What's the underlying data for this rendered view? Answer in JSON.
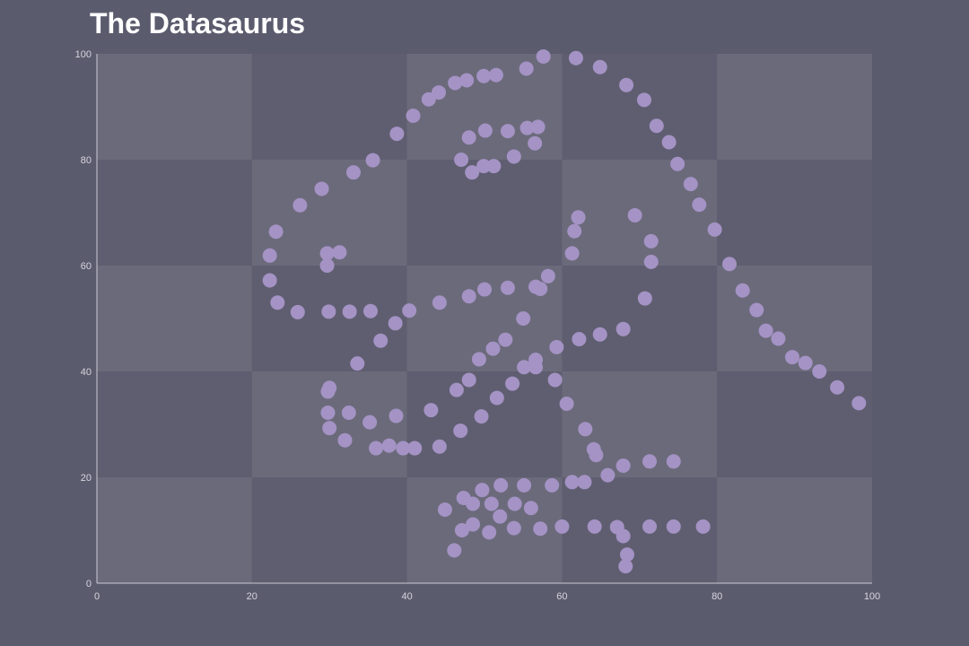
{
  "title": "The Datasaurus",
  "chart_data": {
    "type": "scatter",
    "title": "The Datasaurus",
    "xlabel": "",
    "ylabel": "",
    "xlim": [
      0,
      100
    ],
    "ylim": [
      0,
      100
    ],
    "xticks": [
      "0",
      "20",
      "40",
      "60",
      "80",
      "100"
    ],
    "yticks": [
      "0",
      "20",
      "40",
      "60",
      "80",
      "100"
    ],
    "grid": "checkerboard",
    "legend": "none",
    "colors": {
      "background": "#5b5b6e",
      "plot_light": "#6b6a7b",
      "plot_dark": "#5f5e71",
      "point": "#a493c4",
      "axis": "#c9c9d4",
      "tick_label": "#d6d6df",
      "title": "#ffffff"
    },
    "points": [
      [
        55.4,
        97.2
      ],
      [
        51.5,
        96.0
      ],
      [
        46.2,
        94.5
      ],
      [
        42.8,
        91.4
      ],
      [
        40.8,
        88.3
      ],
      [
        38.7,
        84.9
      ],
      [
        35.6,
        79.9
      ],
      [
        33.1,
        77.6
      ],
      [
        29.0,
        74.5
      ],
      [
        26.2,
        71.4
      ],
      [
        23.1,
        66.4
      ],
      [
        22.3,
        61.9
      ],
      [
        22.3,
        57.2
      ],
      [
        23.3,
        53.0
      ],
      [
        25.9,
        51.2
      ],
      [
        29.9,
        51.3
      ],
      [
        32.6,
        51.3
      ],
      [
        35.3,
        51.4
      ],
      [
        38.5,
        49.1
      ],
      [
        40.3,
        51.5
      ],
      [
        44.2,
        53.0
      ],
      [
        48.0,
        54.2
      ],
      [
        50.0,
        55.5
      ],
      [
        53.0,
        55.8
      ],
      [
        56.6,
        56.0
      ],
      [
        58.2,
        58.0
      ],
      [
        57.6,
        99.5
      ],
      [
        61.8,
        99.2
      ],
      [
        64.9,
        97.5
      ],
      [
        68.3,
        94.1
      ],
      [
        70.6,
        91.3
      ],
      [
        72.2,
        86.4
      ],
      [
        73.8,
        83.3
      ],
      [
        74.9,
        79.2
      ],
      [
        76.6,
        75.4
      ],
      [
        77.7,
        71.5
      ],
      [
        79.7,
        66.8
      ],
      [
        81.6,
        60.3
      ],
      [
        83.3,
        55.3
      ],
      [
        85.1,
        51.6
      ],
      [
        86.3,
        47.7
      ],
      [
        87.9,
        46.2
      ],
      [
        89.7,
        42.7
      ],
      [
        91.4,
        41.6
      ],
      [
        93.2,
        40.0
      ],
      [
        95.5,
        37.0
      ],
      [
        98.3,
        34.0
      ],
      [
        47.7,
        95.0
      ],
      [
        49.9,
        95.8
      ],
      [
        44.1,
        92.7
      ],
      [
        48.0,
        84.2
      ],
      [
        50.1,
        85.5
      ],
      [
        53.0,
        85.4
      ],
      [
        55.5,
        86.0
      ],
      [
        56.9,
        86.2
      ],
      [
        56.5,
        83.1
      ],
      [
        53.8,
        80.6
      ],
      [
        51.2,
        78.8
      ],
      [
        49.9,
        78.8
      ],
      [
        48.4,
        77.6
      ],
      [
        47.0,
        80.0
      ],
      [
        29.7,
        62.3
      ],
      [
        31.3,
        62.5
      ],
      [
        29.7,
        60.0
      ],
      [
        62.1,
        69.1
      ],
      [
        61.6,
        66.5
      ],
      [
        61.3,
        62.3
      ],
      [
        69.4,
        69.5
      ],
      [
        71.5,
        64.6
      ],
      [
        71.5,
        60.7
      ],
      [
        70.7,
        53.8
      ],
      [
        57.2,
        55.6
      ],
      [
        55.0,
        50.0
      ],
      [
        52.7,
        46.0
      ],
      [
        51.1,
        44.3
      ],
      [
        49.3,
        42.3
      ],
      [
        46.4,
        36.5
      ],
      [
        43.1,
        32.7
      ],
      [
        38.6,
        31.6
      ],
      [
        35.2,
        30.4
      ],
      [
        32.5,
        32.2
      ],
      [
        29.8,
        32.2
      ],
      [
        30.0,
        29.3
      ],
      [
        32.0,
        27.0
      ],
      [
        36.0,
        25.5
      ],
      [
        37.7,
        26.0
      ],
      [
        39.5,
        25.5
      ],
      [
        41.0,
        25.5
      ],
      [
        44.2,
        25.8
      ],
      [
        46.9,
        28.8
      ],
      [
        49.6,
        31.5
      ],
      [
        51.6,
        35.0
      ],
      [
        53.6,
        37.7
      ],
      [
        55.1,
        40.8
      ],
      [
        56.6,
        42.2
      ],
      [
        56.6,
        40.8
      ],
      [
        59.3,
        44.6
      ],
      [
        62.2,
        46.1
      ],
      [
        64.9,
        47.0
      ],
      [
        67.9,
        48.0
      ],
      [
        33.6,
        41.5
      ],
      [
        36.6,
        45.8
      ],
      [
        30.0,
        36.9
      ],
      [
        29.8,
        36.2
      ],
      [
        48.0,
        38.4
      ],
      [
        59.1,
        38.4
      ],
      [
        60.6,
        33.9
      ],
      [
        63.0,
        29.1
      ],
      [
        64.1,
        25.3
      ],
      [
        64.4,
        24.2
      ],
      [
        65.9,
        20.4
      ],
      [
        67.9,
        22.2
      ],
      [
        71.3,
        23.0
      ],
      [
        74.4,
        23.0
      ],
      [
        62.9,
        19.1
      ],
      [
        61.3,
        19.1
      ],
      [
        58.7,
        18.5
      ],
      [
        55.1,
        18.5
      ],
      [
        52.1,
        18.5
      ],
      [
        49.7,
        17.6
      ],
      [
        47.3,
        16.1
      ],
      [
        48.5,
        15.0
      ],
      [
        50.9,
        15.0
      ],
      [
        52.0,
        12.6
      ],
      [
        53.9,
        15.0
      ],
      [
        56.0,
        14.2
      ],
      [
        44.9,
        13.9
      ],
      [
        48.5,
        11.1
      ],
      [
        47.1,
        10.0
      ],
      [
        50.6,
        9.6
      ],
      [
        53.8,
        10.4
      ],
      [
        57.2,
        10.3
      ],
      [
        60.0,
        10.7
      ],
      [
        64.2,
        10.7
      ],
      [
        67.1,
        10.6
      ],
      [
        67.9,
        8.9
      ],
      [
        68.4,
        5.4
      ],
      [
        68.2,
        3.2
      ],
      [
        71.3,
        10.7
      ],
      [
        74.4,
        10.7
      ],
      [
        78.2,
        10.7
      ],
      [
        46.1,
        6.2
      ]
    ]
  }
}
